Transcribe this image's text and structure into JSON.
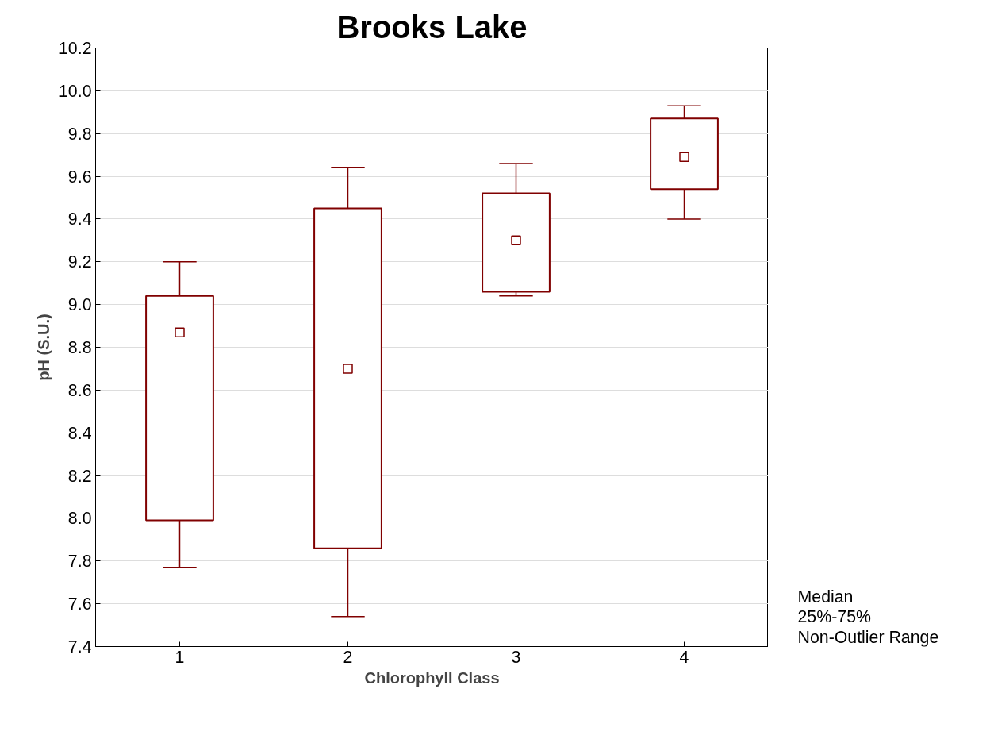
{
  "chart_data": {
    "type": "box",
    "title": "Brooks Lake",
    "xlabel": "Chlorophyll Class",
    "ylabel": "pH (S.U.)",
    "categories": [
      "1",
      "2",
      "3",
      "4"
    ],
    "series": [
      {
        "color": "#800000",
        "boxes": [
          {
            "low": 7.77,
            "q1": 7.99,
            "median": 8.87,
            "q3": 9.04,
            "high": 9.2
          },
          {
            "low": 7.54,
            "q1": 7.86,
            "median": 8.7,
            "q3": 9.45,
            "high": 9.64
          },
          {
            "low": 9.04,
            "q1": 9.06,
            "median": 9.3,
            "q3": 9.52,
            "high": 9.66
          },
          {
            "low": 9.4,
            "q1": 9.54,
            "median": 9.69,
            "q3": 9.87,
            "high": 9.93
          }
        ]
      }
    ],
    "ylim": [
      7.4,
      10.2
    ],
    "yticks": [
      {
        "value": 7.4,
        "label": "7.4"
      },
      {
        "value": 7.6,
        "label": "7.6"
      },
      {
        "value": 7.8,
        "label": "7.8"
      },
      {
        "value": 8.0,
        "label": "8.0"
      },
      {
        "value": 8.2,
        "label": "8.2"
      },
      {
        "value": 8.4,
        "label": "8.4"
      },
      {
        "value": 8.6,
        "label": "8.6"
      },
      {
        "value": 8.8,
        "label": "8.8"
      },
      {
        "value": 9.0,
        "label": "9.0"
      },
      {
        "value": 9.2,
        "label": "9.2"
      },
      {
        "value": 9.4,
        "label": "9.4"
      },
      {
        "value": 9.6,
        "label": "9.6"
      },
      {
        "value": 9.8,
        "label": "9.8"
      },
      {
        "value": 10.0,
        "label": "10.0"
      },
      {
        "value": 10.2,
        "label": "10.2"
      }
    ],
    "grid": "y",
    "annotations": [
      "Median",
      "25%-75%",
      "Non-Outlier Range"
    ]
  }
}
